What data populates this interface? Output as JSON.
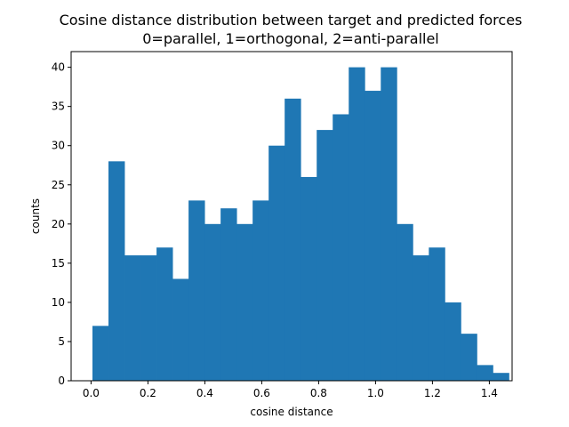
{
  "chart_data": {
    "type": "histogram",
    "title": "Cosine distance distribution between target and predicted forces",
    "subtitle": "0=parallel, 1=orthogonal, 2=anti-parallel",
    "xlabel": "cosine distance",
    "ylabel": "counts",
    "bar_color": "#1f77b4",
    "xlim": [
      -0.07,
      1.48
    ],
    "ylim": [
      0,
      42
    ],
    "xticks": [
      0.0,
      0.2,
      0.4,
      0.6,
      0.8,
      1.0,
      1.2,
      1.4
    ],
    "xtick_labels": [
      "0.0",
      "0.2",
      "0.4",
      "0.6",
      "0.8",
      "1.0",
      "1.2",
      "1.4"
    ],
    "yticks": [
      0,
      5,
      10,
      15,
      20,
      25,
      30,
      35,
      40
    ],
    "ytick_labels": [
      "0",
      "5",
      "10",
      "15",
      "20",
      "25",
      "30",
      "35",
      "40"
    ],
    "bin_start": 0.005,
    "bin_width": 0.0563,
    "values": [
      7,
      28,
      16,
      16,
      17,
      13,
      23,
      20,
      22,
      20,
      23,
      30,
      36,
      26,
      32,
      34,
      40,
      37,
      40,
      20,
      16,
      17,
      10,
      6,
      2,
      1
    ],
    "grid": false,
    "legend": "none"
  }
}
